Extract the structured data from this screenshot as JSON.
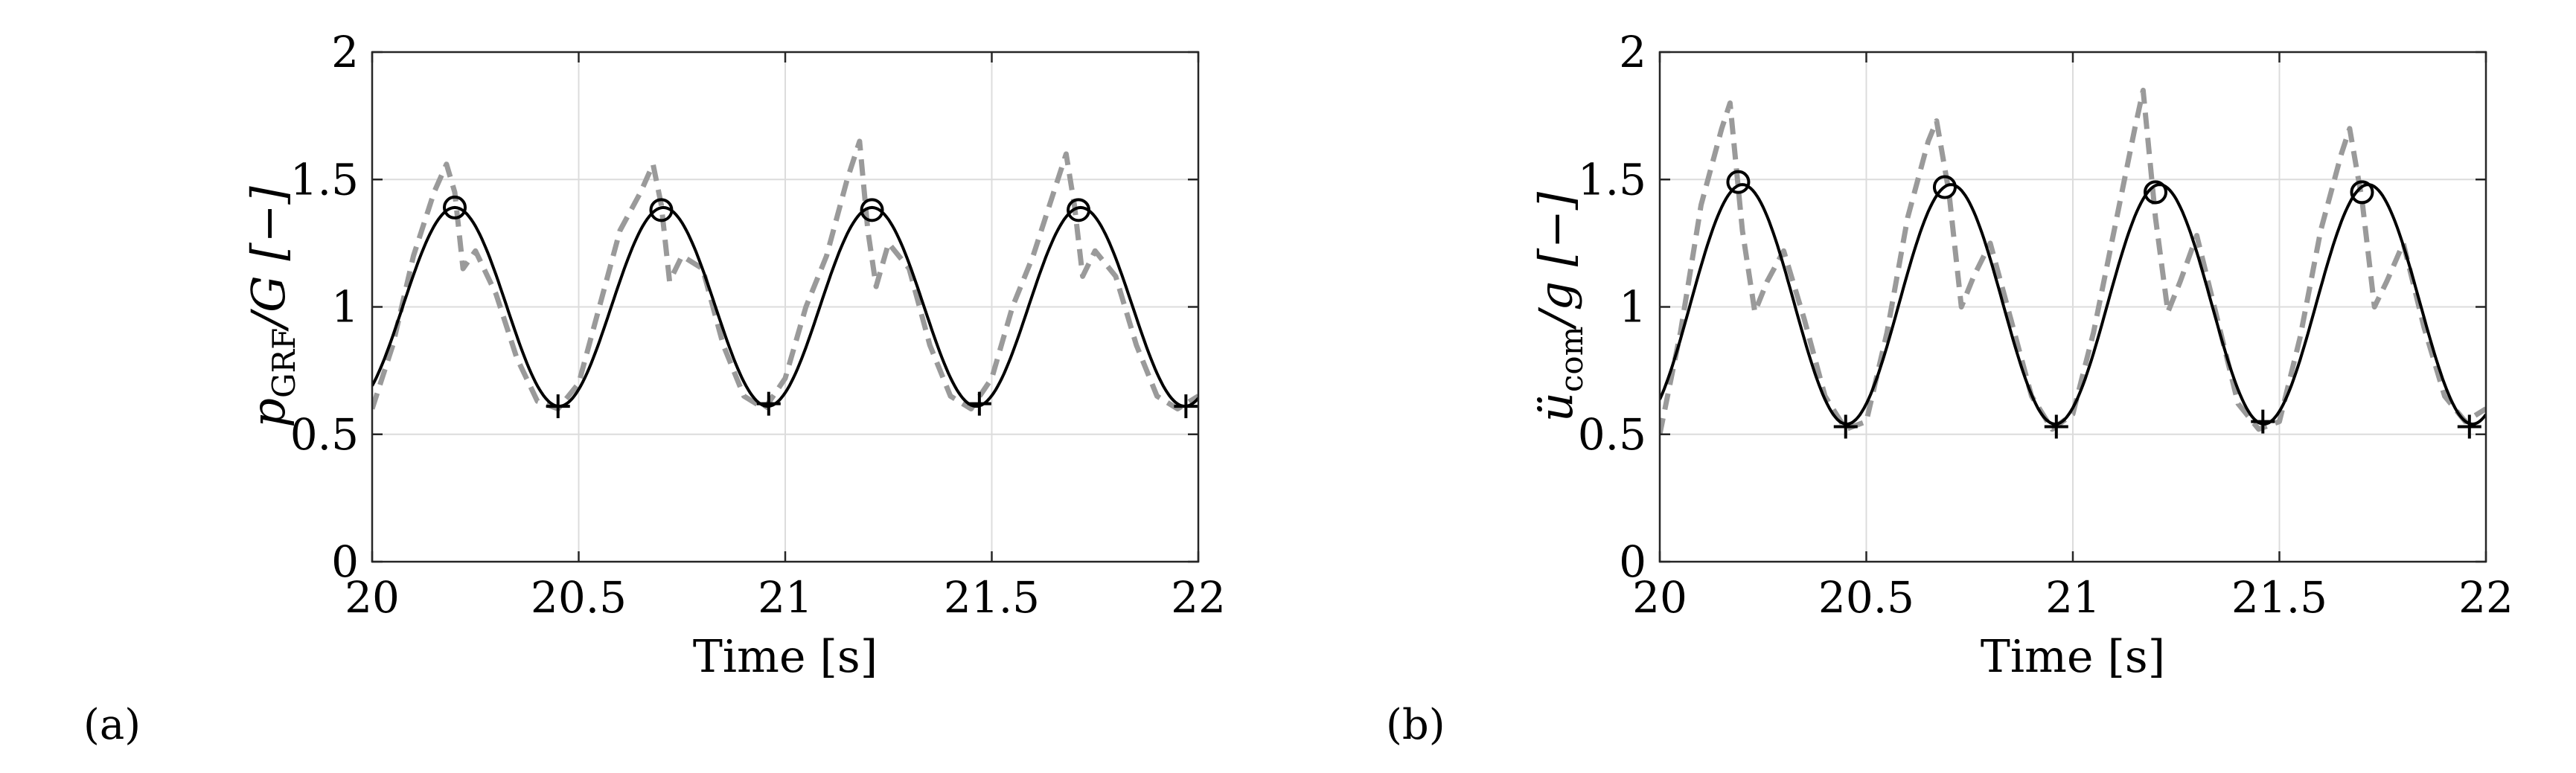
{
  "chart_data": [
    {
      "type": "line",
      "panel_label": "(a)",
      "xlabel": "Time [s]",
      "ylabel": {
        "main": "p",
        "subscript": "GRF",
        "rest": "/G [−]"
      },
      "xlim": [
        20,
        22
      ],
      "ylim": [
        0,
        2
      ],
      "xticks": [
        20,
        20.5,
        21,
        21.5,
        22
      ],
      "xtick_labels": [
        "20",
        "20.5",
        "21",
        "21.5",
        "22"
      ],
      "yticks": [
        0,
        0.5,
        1,
        1.5,
        2
      ],
      "ytick_labels": [
        "0",
        "0.5",
        "1",
        "1.5",
        "2"
      ],
      "grid": true,
      "series": [
        {
          "style": "dashed-gray",
          "x": [
            20.0,
            20.05,
            20.1,
            20.15,
            20.18,
            20.2,
            20.22,
            20.25,
            20.3,
            20.35,
            20.4,
            20.45,
            20.5,
            20.55,
            20.6,
            20.65,
            20.68,
            20.7,
            20.72,
            20.75,
            20.8,
            20.85,
            20.9,
            20.95,
            21.0,
            21.05,
            21.1,
            21.15,
            21.18,
            21.2,
            21.22,
            21.25,
            21.3,
            21.35,
            21.4,
            21.45,
            21.5,
            21.55,
            21.6,
            21.65,
            21.68,
            21.7,
            21.72,
            21.75,
            21.8,
            21.85,
            21.9,
            21.95,
            22.0
          ],
          "y": [
            0.6,
            0.85,
            1.2,
            1.45,
            1.56,
            1.45,
            1.15,
            1.22,
            1.05,
            0.8,
            0.63,
            0.6,
            0.7,
            1.0,
            1.3,
            1.45,
            1.56,
            1.4,
            1.1,
            1.2,
            1.15,
            0.85,
            0.65,
            0.6,
            0.72,
            1.0,
            1.2,
            1.5,
            1.65,
            1.3,
            1.08,
            1.25,
            1.15,
            0.85,
            0.65,
            0.6,
            0.72,
            1.0,
            1.2,
            1.45,
            1.6,
            1.4,
            1.12,
            1.22,
            1.12,
            0.85,
            0.65,
            0.6,
            0.65
          ]
        },
        {
          "style": "solid-black",
          "model": {
            "mean": 1.0,
            "amplitude": 0.39,
            "period": 0.505,
            "peak_time": 20.2
          }
        }
      ],
      "peak_markers": {
        "marker": "circle",
        "x": [
          20.2,
          20.7,
          21.21,
          21.71
        ],
        "y": [
          1.39,
          1.38,
          1.38,
          1.38
        ]
      },
      "trough_markers": {
        "marker": "plus",
        "x": [
          20.45,
          20.96,
          21.47,
          21.97
        ],
        "y": [
          0.61,
          0.62,
          0.62,
          0.61
        ]
      }
    },
    {
      "type": "line",
      "panel_label": "(b)",
      "xlabel": "Time [s]",
      "ylabel": {
        "main": "ü",
        "subscript": "com",
        "rest": "/g [−]"
      },
      "xlim": [
        20,
        22
      ],
      "ylim": [
        0,
        2
      ],
      "xticks": [
        20,
        20.5,
        21,
        21.5,
        22
      ],
      "xtick_labels": [
        "20",
        "20.5",
        "21",
        "21.5",
        "22"
      ],
      "yticks": [
        0,
        0.5,
        1,
        1.5,
        2
      ],
      "ytick_labels": [
        "0",
        "0.5",
        "1",
        "1.5",
        "2"
      ],
      "grid": true,
      "series": [
        {
          "style": "dashed-gray",
          "x": [
            20.0,
            20.05,
            20.1,
            20.15,
            20.17,
            20.2,
            20.23,
            20.26,
            20.3,
            20.35,
            20.4,
            20.45,
            20.5,
            20.55,
            20.6,
            20.65,
            20.67,
            20.7,
            20.73,
            20.76,
            20.8,
            20.85,
            20.9,
            20.95,
            21.0,
            21.05,
            21.1,
            21.15,
            21.17,
            21.2,
            21.23,
            21.26,
            21.3,
            21.35,
            21.4,
            21.45,
            21.5,
            21.55,
            21.6,
            21.65,
            21.67,
            21.7,
            21.73,
            21.76,
            21.8,
            21.85,
            21.9,
            21.95,
            22.0
          ],
          "y": [
            0.5,
            0.9,
            1.4,
            1.7,
            1.8,
            1.3,
            0.98,
            1.1,
            1.22,
            0.95,
            0.65,
            0.52,
            0.55,
            0.9,
            1.35,
            1.65,
            1.73,
            1.45,
            1.0,
            1.12,
            1.25,
            0.95,
            0.65,
            0.52,
            0.58,
            0.9,
            1.3,
            1.7,
            1.85,
            1.35,
            0.98,
            1.1,
            1.28,
            0.95,
            0.62,
            0.52,
            0.55,
            0.88,
            1.3,
            1.6,
            1.7,
            1.42,
            1.0,
            1.1,
            1.25,
            0.92,
            0.65,
            0.55,
            0.6
          ]
        },
        {
          "style": "solid-black",
          "model": {
            "mean": 1.01,
            "amplitude": 0.47,
            "period": 0.505,
            "peak_time": 20.2
          }
        }
      ],
      "peak_markers": {
        "marker": "circle",
        "x": [
          20.19,
          20.69,
          21.2,
          21.7
        ],
        "y": [
          1.49,
          1.47,
          1.45,
          1.45
        ]
      },
      "trough_markers": {
        "marker": "plus",
        "x": [
          20.45,
          20.96,
          21.46,
          21.96
        ],
        "y": [
          0.53,
          0.53,
          0.55,
          0.53
        ]
      }
    }
  ]
}
